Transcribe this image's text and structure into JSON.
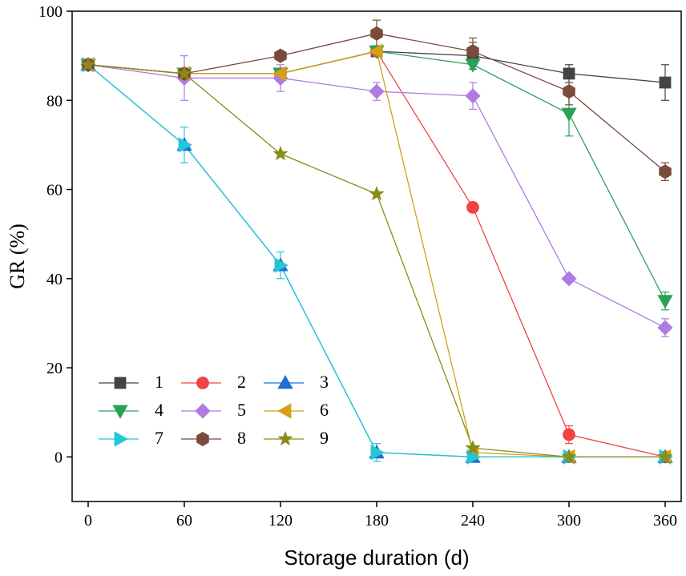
{
  "chart_data": {
    "type": "line",
    "x_label": "Storage duration (d)",
    "y_label": "GR (%)",
    "x": [
      0,
      60,
      120,
      180,
      240,
      300,
      360
    ],
    "xlim": [
      -10,
      370
    ],
    "xticks": [
      0,
      60,
      120,
      180,
      240,
      300,
      360
    ],
    "ylim": [
      -10,
      100
    ],
    "yticks": [
      0,
      20,
      40,
      60,
      80,
      100
    ],
    "legend": "lower left",
    "series": [
      {
        "name": "1",
        "color": "#444444",
        "marker": "square",
        "values": [
          88,
          86,
          86,
          91,
          90,
          86,
          84
        ],
        "errors": [
          0,
          0,
          0,
          0,
          3,
          2,
          4
        ]
      },
      {
        "name": "2",
        "color": "#f04444",
        "marker": "circle",
        "values": [
          88,
          86,
          86,
          91,
          56,
          5,
          0
        ],
        "errors": [
          0,
          0,
          0,
          0,
          0,
          2,
          0
        ]
      },
      {
        "name": "3",
        "color": "#1f6fd0",
        "marker": "triangle-up",
        "values": [
          88,
          70,
          43,
          1,
          0,
          0,
          0
        ],
        "errors": [
          0,
          0,
          0,
          0,
          0,
          0,
          0
        ]
      },
      {
        "name": "4",
        "color": "#2ca05a",
        "marker": "triangle-down",
        "values": [
          88,
          86,
          86,
          91,
          88,
          77,
          35
        ],
        "errors": [
          0,
          0,
          0,
          0,
          0,
          5,
          2
        ]
      },
      {
        "name": "5",
        "color": "#b07ae0",
        "marker": "diamond",
        "values": [
          88,
          85,
          85,
          82,
          81,
          40,
          29
        ],
        "errors": [
          0,
          5,
          3,
          2,
          3,
          0,
          2
        ]
      },
      {
        "name": "6",
        "color": "#d4a017",
        "marker": "triangle-left",
        "values": [
          88,
          86,
          86,
          91,
          1,
          0,
          0
        ],
        "errors": [
          0,
          0,
          0,
          0,
          0,
          0,
          0
        ]
      },
      {
        "name": "7",
        "color": "#22c7d6",
        "marker": "triangle-right",
        "values": [
          88,
          70,
          43,
          1,
          0,
          0,
          0
        ],
        "errors": [
          0,
          4,
          3,
          2,
          0,
          0,
          0
        ]
      },
      {
        "name": "8",
        "color": "#7a4a3a",
        "marker": "hexagon",
        "values": [
          88,
          86,
          90,
          95,
          91,
          82,
          64
        ],
        "errors": [
          0,
          0,
          0,
          3,
          3,
          3,
          2
        ]
      },
      {
        "name": "9",
        "color": "#8b8b1a",
        "marker": "star",
        "values": [
          88,
          86,
          68,
          59,
          2,
          0,
          0
        ],
        "errors": [
          0,
          0,
          0,
          0,
          0,
          0,
          0
        ]
      }
    ]
  }
}
